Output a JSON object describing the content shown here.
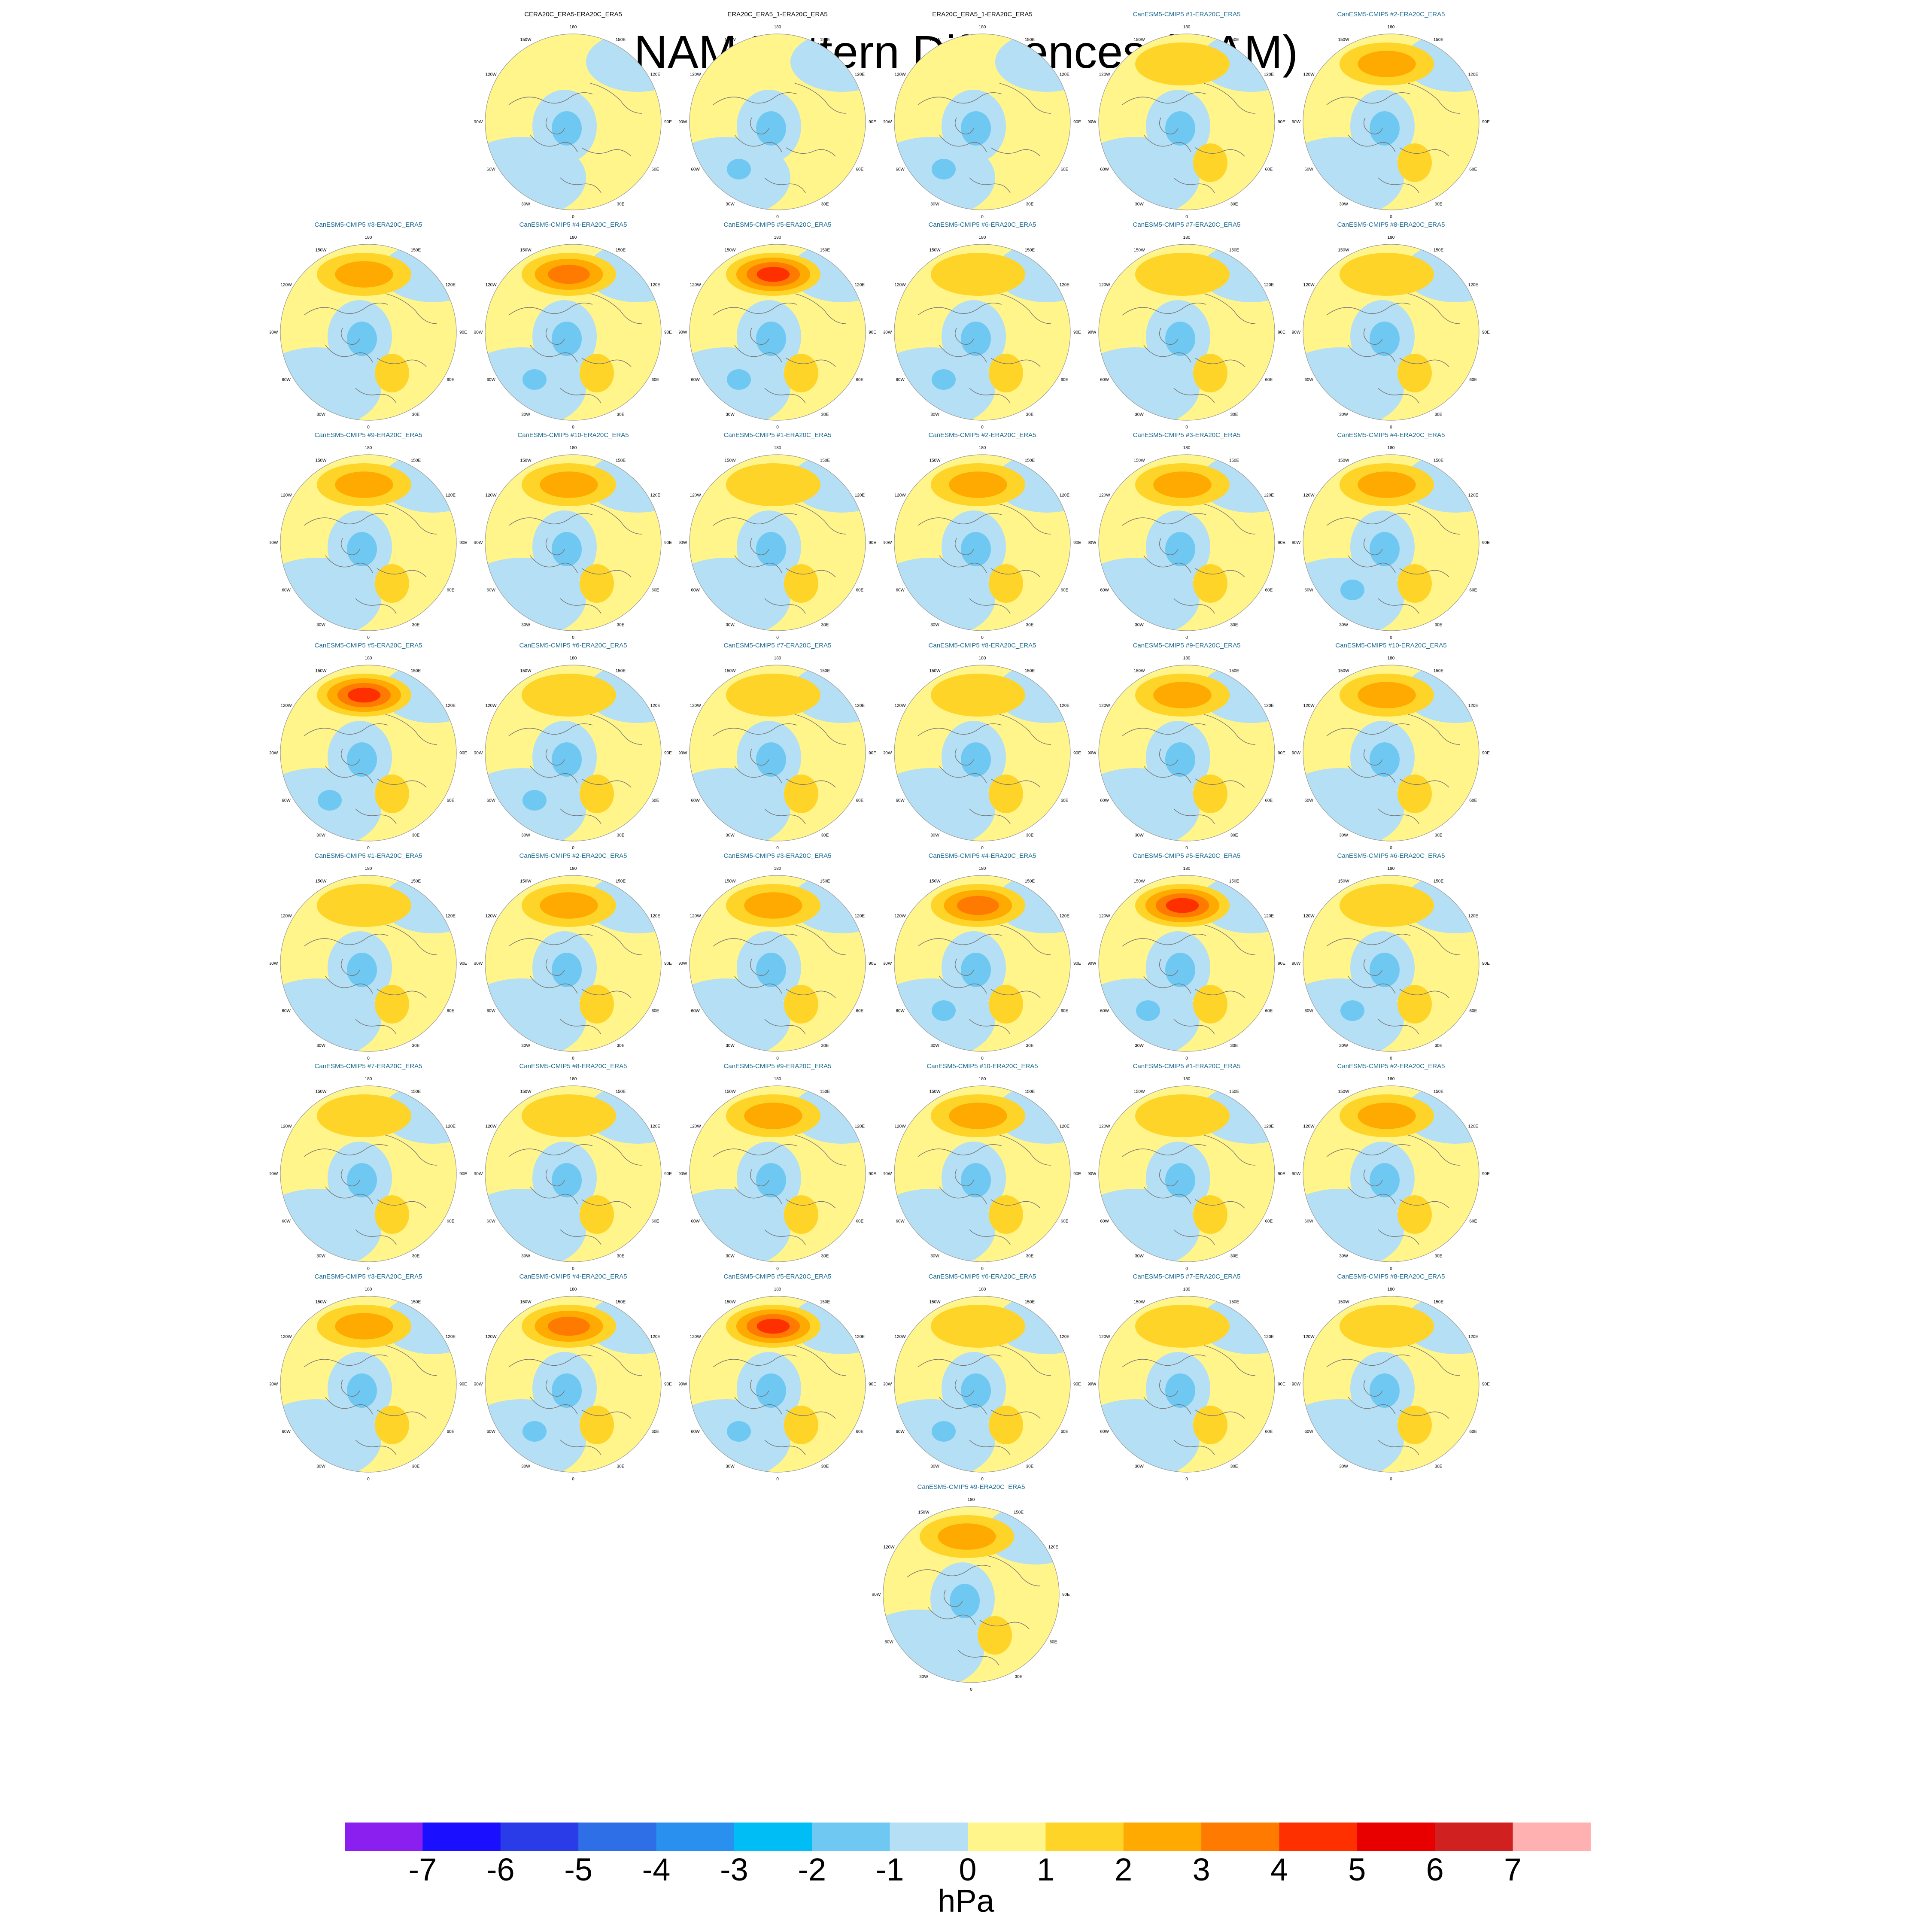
{
  "title": "NAM Pattern Differences (MAM)",
  "colors": {
    "title_reference": "#000000",
    "title_model": "#1a6a90",
    "coast": "#777777",
    "boundary": "#999999"
  },
  "panel_labels": {
    "lon_180": "180",
    "lon_150w": "150W",
    "lon_150e": "150E",
    "lon_120w": "120W",
    "lon_120e": "120E",
    "lon_90w": "90W",
    "lon_90e": "90E",
    "lon_60w": "60W",
    "lon_60e": "60E",
    "lon_30w": "30W",
    "lon_30e": "30E",
    "lon_0": "0"
  },
  "chart_data": {
    "type": "heatmap",
    "projection": "polar-stereographic (north pole)",
    "variable": "NAM pattern difference",
    "units": "hPa",
    "season": "MAM",
    "panels": [
      {
        "title": "CERA20C_ERA5-ERA20C_ERA5",
        "type": "reference",
        "pacific_max": 0.8,
        "atlantic_min": -0.5,
        "europe_max": 0.5
      },
      {
        "title": "ERA20C_ERA5_1-ERA20C_ERA5",
        "type": "reference",
        "pacific_max": 0.5,
        "atlantic_min": -1.2,
        "europe_max": 0.4
      },
      {
        "title": "ERA20C_ERA5_1-ERA20C_ERA5",
        "type": "reference",
        "pacific_max": 0.5,
        "atlantic_min": -1.2,
        "europe_max": 0.4
      },
      {
        "title": "CanESM5-CMIP5 #1-ERA20C_ERA5",
        "type": "model",
        "pacific_max": 1.6,
        "atlantic_min": -0.8,
        "europe_max": 1.2
      },
      {
        "title": "CanESM5-CMIP5 #2-ERA20C_ERA5",
        "type": "model",
        "pacific_max": 2.2,
        "atlantic_min": -0.8,
        "europe_max": 1.5
      },
      {
        "title": "CanESM5-CMIP5 #3-ERA20C_ERA5",
        "type": "model",
        "pacific_max": 2.5,
        "atlantic_min": -0.9,
        "europe_max": 1.6
      },
      {
        "title": "CanESM5-CMIP5 #4-ERA20C_ERA5",
        "type": "model",
        "pacific_max": 3.0,
        "atlantic_min": -1.5,
        "europe_max": 1.7
      },
      {
        "title": "CanESM5-CMIP5 #5-ERA20C_ERA5",
        "type": "model",
        "pacific_max": 4.5,
        "atlantic_min": -1.2,
        "europe_max": 1.5
      },
      {
        "title": "CanESM5-CMIP5 #6-ERA20C_ERA5",
        "type": "model",
        "pacific_max": 1.5,
        "atlantic_min": -1.3,
        "europe_max": 1.4
      },
      {
        "title": "CanESM5-CMIP5 #7-ERA20C_ERA5",
        "type": "model",
        "pacific_max": 1.2,
        "atlantic_min": -1.0,
        "europe_max": 1.3
      },
      {
        "title": "CanESM5-CMIP5 #8-ERA20C_ERA5",
        "type": "model",
        "pacific_max": 1.8,
        "atlantic_min": -0.9,
        "europe_max": 1.3
      },
      {
        "title": "CanESM5-CMIP5 #9-ERA20C_ERA5",
        "type": "model",
        "pacific_max": 2.2,
        "atlantic_min": -0.9,
        "europe_max": 1.8
      },
      {
        "title": "CanESM5-CMIP5 #10-ERA20C_ERA5",
        "type": "model",
        "pacific_max": 2.4,
        "atlantic_min": -0.9,
        "europe_max": 1.4
      },
      {
        "title": "CanESM5-CMIP5 #1-ERA20C_ERA5",
        "type": "model",
        "pacific_max": 1.8,
        "atlantic_min": -0.8,
        "europe_max": 1.2
      },
      {
        "title": "CanESM5-CMIP5 #2-ERA20C_ERA5",
        "type": "model",
        "pacific_max": 2.5,
        "atlantic_min": -0.9,
        "europe_max": 1.6
      },
      {
        "title": "CanESM5-CMIP5 #3-ERA20C_ERA5",
        "type": "model",
        "pacific_max": 2.6,
        "atlantic_min": -0.9,
        "europe_max": 1.5
      },
      {
        "title": "CanESM5-CMIP5 #4-ERA20C_ERA5",
        "type": "model",
        "pacific_max": 2.7,
        "atlantic_min": -1.5,
        "europe_max": 1.7
      },
      {
        "title": "CanESM5-CMIP5 #5-ERA20C_ERA5",
        "type": "model",
        "pacific_max": 4.6,
        "atlantic_min": -1.2,
        "europe_max": 1.4
      },
      {
        "title": "CanESM5-CMIP5 #6-ERA20C_ERA5",
        "type": "model",
        "pacific_max": 1.6,
        "atlantic_min": -1.4,
        "europe_max": 1.5
      },
      {
        "title": "CanESM5-CMIP5 #7-ERA20C_ERA5",
        "type": "model",
        "pacific_max": 1.2,
        "atlantic_min": -1.0,
        "europe_max": 1.3
      },
      {
        "title": "CanESM5-CMIP5 #8-ERA20C_ERA5",
        "type": "model",
        "pacific_max": 1.8,
        "atlantic_min": -0.9,
        "europe_max": 1.3
      },
      {
        "title": "CanESM5-CMIP5 #9-ERA20C_ERA5",
        "type": "model",
        "pacific_max": 2.2,
        "atlantic_min": -0.8,
        "europe_max": 1.8
      },
      {
        "title": "CanESM5-CMIP5 #10-ERA20C_ERA5",
        "type": "model",
        "pacific_max": 2.4,
        "atlantic_min": -1.0,
        "europe_max": 1.4
      },
      {
        "title": "CanESM5-CMIP5 #1-ERA20C_ERA5",
        "type": "model",
        "pacific_max": 1.8,
        "atlantic_min": -0.8,
        "europe_max": 1.2
      },
      {
        "title": "CanESM5-CMIP5 #2-ERA20C_ERA5",
        "type": "model",
        "pacific_max": 2.6,
        "atlantic_min": -0.9,
        "europe_max": 1.6
      },
      {
        "title": "CanESM5-CMIP5 #3-ERA20C_ERA5",
        "type": "model",
        "pacific_max": 2.6,
        "atlantic_min": -0.9,
        "europe_max": 1.5
      },
      {
        "title": "CanESM5-CMIP5 #4-ERA20C_ERA5",
        "type": "model",
        "pacific_max": 3.0,
        "atlantic_min": -1.5,
        "europe_max": 1.7
      },
      {
        "title": "CanESM5-CMIP5 #5-ERA20C_ERA5",
        "type": "model",
        "pacific_max": 4.3,
        "atlantic_min": -1.2,
        "europe_max": 1.4
      },
      {
        "title": "CanESM5-CMIP5 #6-ERA20C_ERA5",
        "type": "model",
        "pacific_max": 1.2,
        "atlantic_min": -1.4,
        "europe_max": 1.4
      },
      {
        "title": "CanESM5-CMIP5 #7-ERA20C_ERA5",
        "type": "model",
        "pacific_max": 1.1,
        "atlantic_min": -1.0,
        "europe_max": 1.3
      },
      {
        "title": "CanESM5-CMIP5 #8-ERA20C_ERA5",
        "type": "model",
        "pacific_max": 1.8,
        "atlantic_min": -0.9,
        "europe_max": 1.3
      },
      {
        "title": "CanESM5-CMIP5 #9-ERA20C_ERA5",
        "type": "model",
        "pacific_max": 2.0,
        "atlantic_min": -0.9,
        "europe_max": 1.8
      },
      {
        "title": "CanESM5-CMIP5 #10-ERA20C_ERA5",
        "type": "model",
        "pacific_max": 2.4,
        "atlantic_min": -1.0,
        "europe_max": 1.4
      },
      {
        "title": "CanESM5-CMIP5 #1-ERA20C_ERA5",
        "type": "model",
        "pacific_max": 1.8,
        "atlantic_min": -0.8,
        "europe_max": 1.2
      },
      {
        "title": "CanESM5-CMIP5 #2-ERA20C_ERA5",
        "type": "model",
        "pacific_max": 2.6,
        "atlantic_min": -0.9,
        "europe_max": 1.6
      },
      {
        "title": "CanESM5-CMIP5 #3-ERA20C_ERA5",
        "type": "model",
        "pacific_max": 2.6,
        "atlantic_min": -0.9,
        "europe_max": 1.5
      },
      {
        "title": "CanESM5-CMIP5 #4-ERA20C_ERA5",
        "type": "model",
        "pacific_max": 3.0,
        "atlantic_min": -1.5,
        "europe_max": 1.7
      },
      {
        "title": "CanESM5-CMIP5 #5-ERA20C_ERA5",
        "type": "model",
        "pacific_max": 4.6,
        "atlantic_min": -1.2,
        "europe_max": 1.4
      },
      {
        "title": "CanESM5-CMIP5 #6-ERA20C_ERA5",
        "type": "model",
        "pacific_max": 1.3,
        "atlantic_min": -1.4,
        "europe_max": 1.5
      },
      {
        "title": "CanESM5-CMIP5 #7-ERA20C_ERA5",
        "type": "model",
        "pacific_max": 1.1,
        "atlantic_min": -1.0,
        "europe_max": 1.4
      },
      {
        "title": "CanESM5-CMIP5 #8-ERA20C_ERA5",
        "type": "model",
        "pacific_max": 1.6,
        "atlantic_min": -0.9,
        "europe_max": 1.3
      },
      {
        "title": "CanESM5-CMIP5 #9-ERA20C_ERA5",
        "type": "model",
        "pacific_max": 2.0,
        "atlantic_min": -0.9,
        "europe_max": 1.8
      }
    ],
    "colorbar": {
      "label": "hPa",
      "levels": [
        -7,
        -6,
        -5,
        -4,
        -3,
        -2,
        -1,
        0,
        1,
        2,
        3,
        4,
        5,
        6,
        7
      ],
      "colors": [
        "#8a1ff0",
        "#1a10ff",
        "#2a3ce8",
        "#2e6ee6",
        "#2a90f0",
        "#00bdf6",
        "#6fc8f2",
        "#b4dff4",
        "#fff58a",
        "#ffd428",
        "#ffaa00",
        "#ff7a00",
        "#ff3000",
        "#e80000",
        "#d02020",
        "#ffb0b0"
      ],
      "tick_labels": [
        "-7",
        "-6",
        "-5",
        "-4",
        "-3",
        "-2",
        "-1",
        "0",
        "1",
        "2",
        "3",
        "4",
        "5",
        "6",
        "7"
      ]
    }
  }
}
